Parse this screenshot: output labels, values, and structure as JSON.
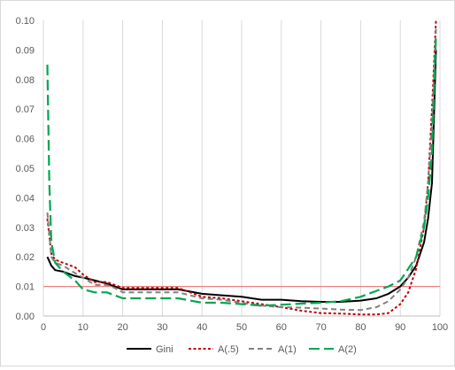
{
  "chart_data": {
    "type": "line",
    "title": "",
    "xlabel": "",
    "ylabel": "",
    "xlim": [
      0,
      100
    ],
    "ylim": [
      0,
      0.1
    ],
    "x_ticks": [
      0,
      10,
      20,
      30,
      40,
      50,
      60,
      70,
      80,
      90,
      100
    ],
    "x_tick_labels": [
      "0",
      "10",
      "20",
      "30",
      "40",
      "50",
      "60",
      "70",
      "80",
      "90",
      "100"
    ],
    "y_ticks": [
      0,
      0.01,
      0.02,
      0.03,
      0.04,
      0.05,
      0.06,
      0.07,
      0.08,
      0.09,
      0.1
    ],
    "y_tick_labels": [
      "0.00",
      "0.01",
      "0.02",
      "0.03",
      "0.04",
      "0.05",
      "0.06",
      "0.07",
      "0.08",
      "0.09",
      "0.10"
    ],
    "grid": "vertical",
    "legend_position": "bottom",
    "reference_line": {
      "y": 0.01,
      "color": "#f08080"
    },
    "series": [
      {
        "name": "Gini",
        "color": "#000000",
        "dash": "solid",
        "x": [
          1,
          2,
          3,
          5,
          8,
          10,
          13,
          16,
          18,
          20,
          25,
          30,
          34,
          40,
          45,
          50,
          55,
          60,
          65,
          70,
          75,
          80,
          84,
          87,
          90,
          92,
          94,
          96,
          97,
          98,
          99
        ],
        "y": [
          0.02,
          0.017,
          0.0155,
          0.015,
          0.0135,
          0.013,
          0.012,
          0.011,
          0.01,
          0.009,
          0.009,
          0.009,
          0.009,
          0.0075,
          0.007,
          0.0065,
          0.0055,
          0.0055,
          0.005,
          0.0048,
          0.0048,
          0.0052,
          0.006,
          0.0075,
          0.01,
          0.013,
          0.017,
          0.025,
          0.033,
          0.045,
          0.09
        ]
      },
      {
        "name": "A(.5)",
        "color": "#c00000",
        "dash": "short",
        "x": [
          1,
          2,
          3,
          5,
          8,
          10,
          13,
          16,
          18,
          20,
          25,
          30,
          34,
          40,
          45,
          50,
          55,
          60,
          65,
          70,
          75,
          80,
          84,
          87,
          90,
          92,
          94,
          96,
          97,
          98,
          99
        ],
        "y": [
          0.033,
          0.021,
          0.019,
          0.018,
          0.0165,
          0.014,
          0.0115,
          0.0115,
          0.0105,
          0.0095,
          0.0095,
          0.0095,
          0.0095,
          0.0065,
          0.006,
          0.005,
          0.004,
          0.003,
          0.0018,
          0.001,
          0.0008,
          0.0005,
          0.0005,
          0.001,
          0.004,
          0.008,
          0.016,
          0.03,
          0.045,
          0.07,
          0.1
        ]
      },
      {
        "name": "A(1)",
        "color": "#808080",
        "dash": "medium",
        "x": [
          1,
          2,
          3,
          5,
          8,
          10,
          13,
          16,
          18,
          20,
          25,
          30,
          34,
          40,
          45,
          50,
          55,
          60,
          65,
          70,
          75,
          80,
          84,
          87,
          90,
          92,
          94,
          96,
          97,
          98,
          99
        ],
        "y": [
          0.035,
          0.02,
          0.018,
          0.017,
          0.0145,
          0.013,
          0.0105,
          0.0105,
          0.0095,
          0.008,
          0.008,
          0.008,
          0.008,
          0.006,
          0.0055,
          0.0045,
          0.0035,
          0.003,
          0.0028,
          0.0025,
          0.0022,
          0.002,
          0.003,
          0.005,
          0.009,
          0.013,
          0.02,
          0.032,
          0.045,
          0.065,
          0.097
        ]
      },
      {
        "name": "A(2)",
        "color": "#00a651",
        "dash": "long",
        "x": [
          1,
          1.5,
          2,
          3,
          5,
          7,
          8,
          10,
          13,
          16,
          18,
          20,
          25,
          30,
          34,
          40,
          45,
          50,
          55,
          60,
          65,
          70,
          75,
          80,
          84,
          87,
          90,
          92,
          94,
          96,
          97,
          98,
          99
        ],
        "y": [
          0.085,
          0.045,
          0.025,
          0.018,
          0.015,
          0.013,
          0.012,
          0.009,
          0.008,
          0.008,
          0.007,
          0.006,
          0.006,
          0.006,
          0.006,
          0.0045,
          0.0045,
          0.004,
          0.0035,
          0.0038,
          0.0042,
          0.0045,
          0.005,
          0.0065,
          0.0085,
          0.01,
          0.012,
          0.016,
          0.02,
          0.03,
          0.04,
          0.055,
          0.095
        ]
      }
    ]
  }
}
